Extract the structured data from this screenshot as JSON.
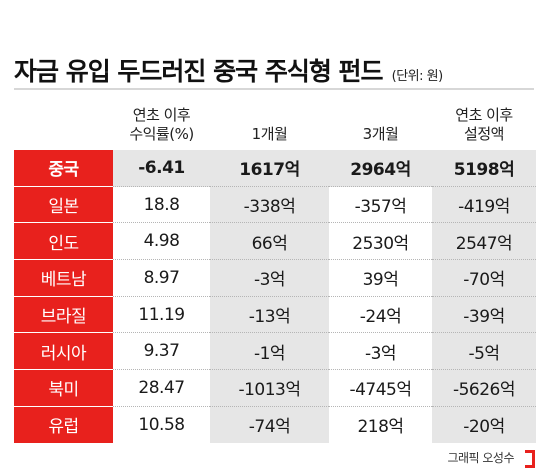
{
  "header": {
    "title": "자금 유입 두드러진 중국 주식형 펀드",
    "unit": "(단위: 원)"
  },
  "table": {
    "columns": [
      {
        "line1": "",
        "line2": ""
      },
      {
        "line1": "연초 이후",
        "line2": "수익률(%)"
      },
      {
        "line1": "",
        "line2": "1개월"
      },
      {
        "line1": "",
        "line2": "3개월"
      },
      {
        "line1": "연초 이후",
        "line2": "설정액"
      }
    ],
    "rows": [
      {
        "country": "중국",
        "ytd_return": "-6.41",
        "m1": "1617억",
        "m3": "2964억",
        "ytd_amount": "5198억"
      },
      {
        "country": "일본",
        "ytd_return": "18.8",
        "m1": "-338억",
        "m3": "-357억",
        "ytd_amount": "-419억"
      },
      {
        "country": "인도",
        "ytd_return": "4.98",
        "m1": "66억",
        "m3": "2530억",
        "ytd_amount": "2547억"
      },
      {
        "country": "베트남",
        "ytd_return": "8.97",
        "m1": "-3억",
        "m3": "39억",
        "ytd_amount": "-70억"
      },
      {
        "country": "브라질",
        "ytd_return": "11.19",
        "m1": "-13억",
        "m3": "-24억",
        "ytd_amount": "-39억"
      },
      {
        "country": "러시아",
        "ytd_return": "9.37",
        "m1": "-1억",
        "m3": "-3억",
        "ytd_amount": "-5억"
      },
      {
        "country": "북미",
        "ytd_return": "28.47",
        "m1": "-1013억",
        "m3": "-4745억",
        "ytd_amount": "-5626억"
      },
      {
        "country": "유럽",
        "ytd_return": "10.58",
        "m1": "-74억",
        "m3": "218억",
        "ytd_amount": "-20억"
      }
    ]
  },
  "footer": {
    "credit": "그래픽 오성수"
  },
  "colors": {
    "accent_red": "#e8211d",
    "shade_gray": "#e6e6e6"
  },
  "icons": {
    "logo": "red-bracket-logo-icon"
  }
}
